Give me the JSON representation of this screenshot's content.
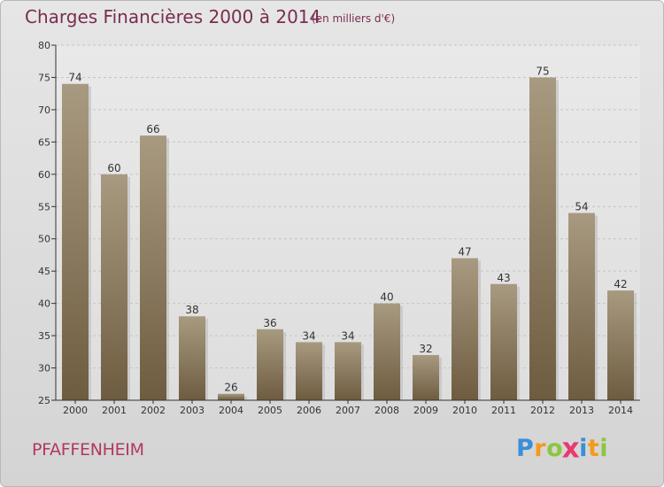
{
  "title": "Charges Financières 2000 à 2014",
  "subtitle": "(en milliers d'€)",
  "place": "PFAFFENHEIM",
  "logo": {
    "letters": [
      "P",
      "r",
      "o",
      "x",
      "i",
      "t",
      "i"
    ],
    "colors": [
      "#3a8fd6",
      "#f39a1e",
      "#8cc63f",
      "#e83a6f",
      "#3a8fd6",
      "#f39a1e",
      "#8cc63f"
    ]
  },
  "colors": {
    "title": "#7a2d4f",
    "bar_top": "#a89a80",
    "bar_bottom": "#6e5c40",
    "axis": "#333333"
  },
  "chart_data": {
    "type": "bar",
    "categories": [
      "2000",
      "2001",
      "2002",
      "2003",
      "2004",
      "2005",
      "2006",
      "2007",
      "2008",
      "2009",
      "2010",
      "2011",
      "2012",
      "2013",
      "2014"
    ],
    "values": [
      74,
      60,
      66,
      38,
      26,
      36,
      34,
      34,
      40,
      32,
      47,
      43,
      75,
      54,
      42
    ],
    "yticks": [
      25,
      30,
      35,
      40,
      45,
      50,
      55,
      60,
      65,
      70,
      75,
      80
    ],
    "ylim": [
      25,
      80
    ],
    "grid": true
  }
}
